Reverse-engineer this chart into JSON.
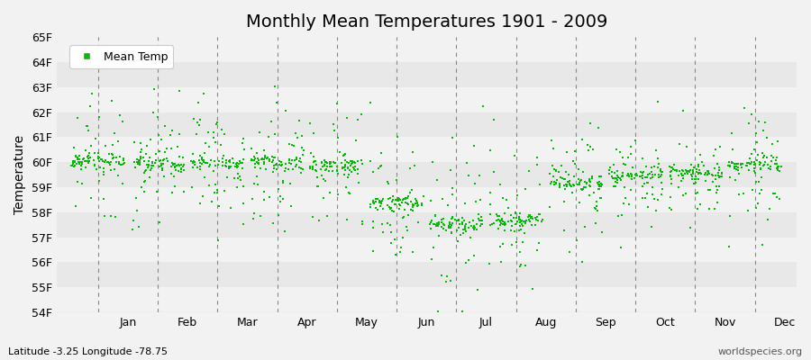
{
  "title": "Monthly Mean Temperatures 1901 - 2009",
  "ylabel": "Temperature",
  "subtitle": "Latitude -3.25 Longitude -78.75",
  "watermark": "worldspecies.org",
  "legend_label": "Mean Temp",
  "months": [
    "Jan",
    "Feb",
    "Mar",
    "Apr",
    "May",
    "Jun",
    "Jul",
    "Aug",
    "Sep",
    "Oct",
    "Nov",
    "Dec"
  ],
  "ylim": [
    54,
    65
  ],
  "yticks": [
    54,
    55,
    56,
    57,
    58,
    59,
    60,
    61,
    62,
    63,
    64,
    65
  ],
  "ytick_labels": [
    "54F",
    "55F",
    "56F",
    "57F",
    "58F",
    "59F",
    "60F",
    "61F",
    "62F",
    "63F",
    "64F",
    "65F"
  ],
  "marker_color": "#00bb00",
  "marker_size": 3,
  "bg_color": "#f2f2f2",
  "band_light": "#f2f2f2",
  "band_dark": "#e8e8e8",
  "dashed_line_color": "#888888",
  "month_means": [
    60.0,
    59.9,
    59.95,
    60.05,
    59.9,
    58.4,
    57.5,
    57.7,
    59.2,
    59.5,
    59.6,
    59.9
  ],
  "month_stds": [
    0.8,
    0.85,
    0.9,
    0.85,
    0.9,
    1.1,
    1.2,
    1.1,
    0.85,
    0.75,
    0.75,
    0.85
  ],
  "n_points": 109,
  "seed": 42,
  "title_fontsize": 14,
  "axis_label_fontsize": 10,
  "tick_fontsize": 9
}
